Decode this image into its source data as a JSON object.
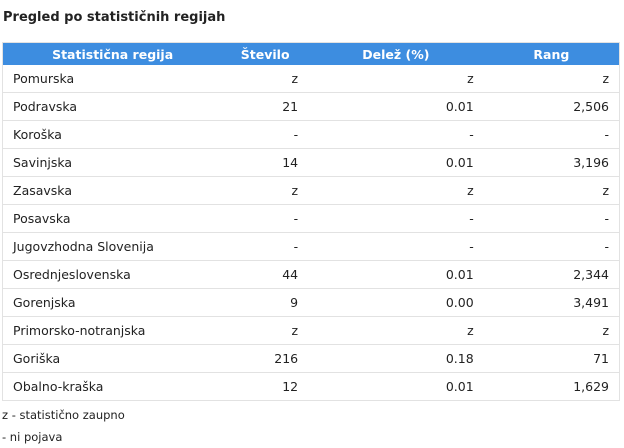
{
  "header": {
    "title": "Pregled po statističnih regijah"
  },
  "table": {
    "columns": [
      "Statistična regija",
      "Število",
      "Delež (%)",
      "Rang"
    ],
    "rows": [
      [
        "Pomurska",
        "z",
        "z",
        "z"
      ],
      [
        "Podravska",
        "21",
        "0.01",
        "2,506"
      ],
      [
        "Koroška",
        "-",
        "-",
        "-"
      ],
      [
        "Savinjska",
        "14",
        "0.01",
        "3,196"
      ],
      [
        "Zasavska",
        "z",
        "z",
        "z"
      ],
      [
        "Posavska",
        "-",
        "-",
        "-"
      ],
      [
        "Jugovzhodna Slovenija",
        "-",
        "-",
        "-"
      ],
      [
        "Osrednjeslovenska",
        "44",
        "0.01",
        "2,344"
      ],
      [
        "Gorenjska",
        "9",
        "0.00",
        "3,491"
      ],
      [
        "Primorsko-notranjska",
        "z",
        "z",
        "z"
      ],
      [
        "Goriška",
        "216",
        "0.18",
        "71"
      ],
      [
        "Obalno-kraška",
        "12",
        "0.01",
        "1,629"
      ]
    ]
  },
  "notes": [
    "z - statistično zaupno",
    "- ni pojava"
  ]
}
